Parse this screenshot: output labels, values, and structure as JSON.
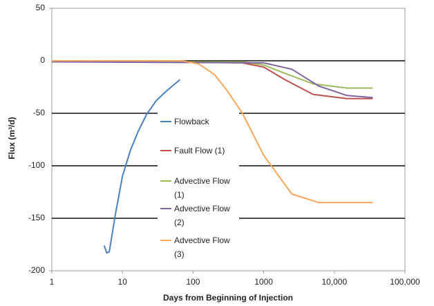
{
  "chart_data": {
    "type": "line",
    "xlabel": "Days from Beginning of Injection",
    "ylabel": "Flux (m³/d)",
    "xscale": "log",
    "xlim": [
      1,
      100000
    ],
    "xticks": [
      1,
      10,
      100,
      1000,
      {
        "value": 10000,
        "label": "10,000"
      },
      {
        "value": 100000,
        "label": "100,000"
      }
    ],
    "ylim": [
      -200,
      50
    ],
    "yticks": [
      50,
      0,
      -50,
      -100,
      -150,
      -200
    ],
    "grid": true,
    "series": [
      {
        "name": "Flowback",
        "color": "#4a7fc1",
        "x": [
          5.5,
          6,
          6.5,
          8,
          10,
          13,
          17,
          22,
          30,
          40,
          65
        ],
        "values": [
          -176,
          -183,
          -182,
          -145,
          -110,
          -85,
          -66,
          -51,
          -38,
          -30,
          -18
        ]
      },
      {
        "name": "Fault Flow (1)",
        "color": "#c0504d",
        "x": [
          1,
          100,
          500,
          1000,
          2000,
          5000,
          15000,
          35000
        ],
        "values": [
          -1,
          -1,
          -2,
          -6,
          -18,
          -32,
          -36,
          -36
        ]
      },
      {
        "name": "Advective Flow (1)",
        "color": "#9bbb59",
        "x": [
          1,
          500,
          1000,
          2000,
          5000,
          15000,
          35000
        ],
        "values": [
          -1,
          -1,
          -4,
          -12,
          -22,
          -26,
          -26
        ]
      },
      {
        "name": "Advective Flow (2)",
        "color": "#8064a2",
        "x": [
          1,
          1000,
          2500,
          6000,
          15000,
          35000
        ],
        "values": [
          -1,
          -2,
          -8,
          -24,
          -33,
          -35
        ]
      },
      {
        "name": "Advective Flow (3)",
        "color": "#f9a65a",
        "x": [
          1,
          70,
          120,
          200,
          300,
          500,
          1000,
          2500,
          6000,
          35000
        ],
        "values": [
          0,
          0,
          -3,
          -13,
          -28,
          -50,
          -90,
          -127,
          -135,
          -135
        ]
      }
    ]
  }
}
